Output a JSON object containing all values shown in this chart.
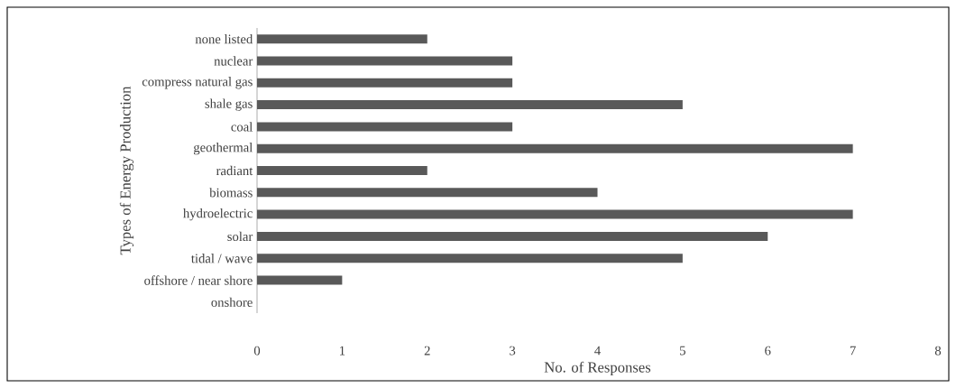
{
  "chart_data": {
    "type": "bar",
    "orientation": "horizontal",
    "xlabel": "No. of Responses",
    "ylabel": "Types of Energy Production",
    "categories": [
      "none listed",
      "nuclear",
      "compress natural gas",
      "shale gas",
      "coal",
      "geothermal",
      "radiant",
      "biomass",
      "hydroelectric",
      "solar",
      "tidal / wave",
      "offshore / near shore",
      "onshore"
    ],
    "values": [
      2,
      3,
      3,
      5,
      3,
      7,
      2,
      4,
      7,
      6,
      5,
      1,
      0
    ],
    "color": "#595959",
    "xlim": [
      0,
      8
    ],
    "xticks": [
      0,
      1,
      2,
      3,
      4,
      5,
      6,
      7,
      8
    ]
  }
}
